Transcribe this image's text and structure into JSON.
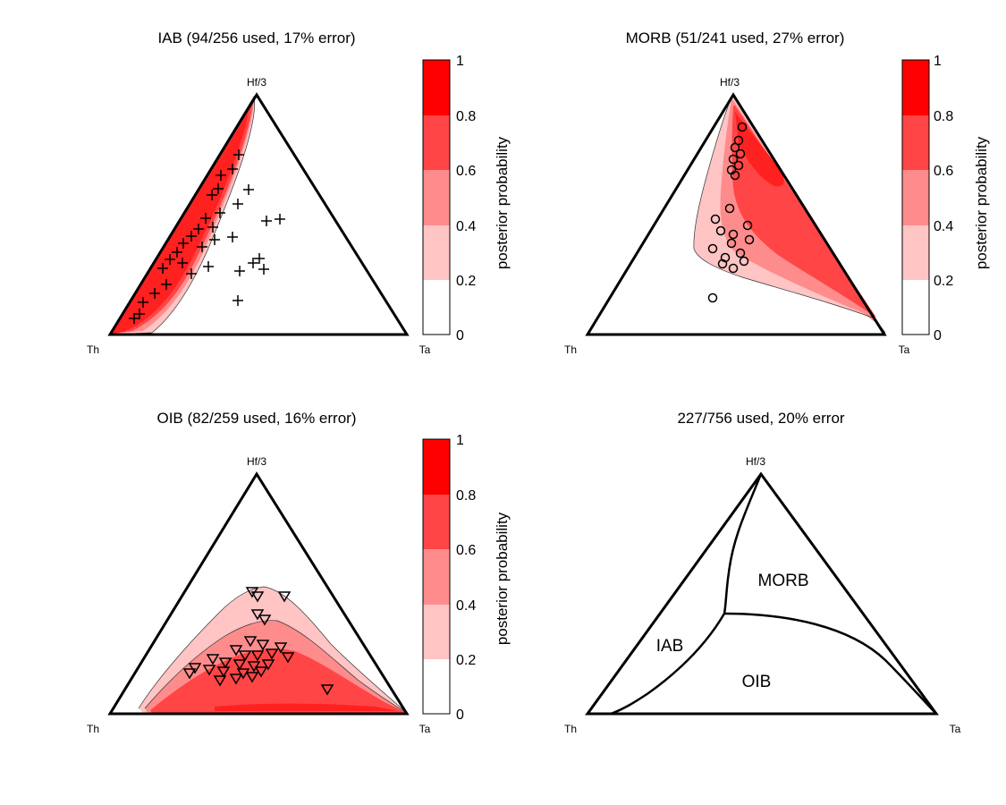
{
  "figure": {
    "vertex_labels": {
      "top": "Hf/3",
      "left": "Th",
      "right": "Ta"
    },
    "colorbar": {
      "label": "posterior probability",
      "ticks": [
        "0",
        "0.2",
        "0.4",
        "0.6",
        "0.8",
        "1"
      ],
      "levels": [
        0,
        0.2,
        0.4,
        0.6,
        0.8,
        1
      ],
      "colors": [
        "#ffffff",
        "#ffc4c4",
        "#ff8c8c",
        "#ff4545",
        "#ff2020",
        "#ff0000"
      ]
    }
  },
  "chart_data": [
    {
      "type": "ternary-contour",
      "title": "IAB (94/256 used, 17% error)",
      "class": "IAB",
      "marker": "plus",
      "used": 94,
      "total": 256,
      "error_percent": 17
    },
    {
      "type": "ternary-contour",
      "title": "MORB (51/241 used, 27% error)",
      "class": "MORB",
      "marker": "circle",
      "used": 51,
      "total": 241,
      "error_percent": 27
    },
    {
      "type": "ternary-contour",
      "title": "OIB (82/259 used, 16% error)",
      "class": "OIB",
      "marker": "triangle-down",
      "used": 82,
      "total": 259,
      "error_percent": 16
    },
    {
      "type": "ternary-regions",
      "title": "227/756 used, 20% error",
      "used": 227,
      "total": 756,
      "error_percent": 20,
      "regions": [
        "MORB",
        "IAB",
        "OIB"
      ]
    }
  ]
}
